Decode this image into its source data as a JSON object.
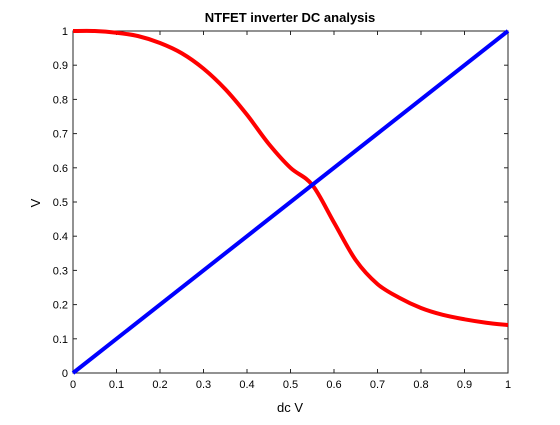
{
  "chart_data": {
    "type": "line",
    "title": "NTFET inverter DC analysis",
    "xlabel": "dc V",
    "ylabel": "V",
    "xlim": [
      0,
      1
    ],
    "ylim": [
      0,
      1
    ],
    "grid": false,
    "legend": null,
    "x_ticks": [
      "0",
      "0.1",
      "0.2",
      "0.3",
      "0.4",
      "0.5",
      "0.6",
      "0.7",
      "0.8",
      "0.9",
      "1"
    ],
    "y_ticks": [
      "0",
      "0.1",
      "0.2",
      "0.3",
      "0.4",
      "0.5",
      "0.6",
      "0.7",
      "0.8",
      "0.9",
      "1"
    ],
    "series": [
      {
        "color": "#ff0000",
        "x": [
          0,
          0.05,
          0.1,
          0.15,
          0.2,
          0.25,
          0.3,
          0.35,
          0.4,
          0.45,
          0.5,
          0.55,
          0.6,
          0.65,
          0.7,
          0.75,
          0.8,
          0.85,
          0.9,
          0.95,
          1.0
        ],
        "y": [
          1.0,
          1.0,
          0.995,
          0.985,
          0.965,
          0.935,
          0.89,
          0.83,
          0.755,
          0.67,
          0.6,
          0.55,
          0.44,
          0.33,
          0.26,
          0.22,
          0.19,
          0.17,
          0.157,
          0.147,
          0.14
        ]
      },
      {
        "color": "#0000ff",
        "x": [
          0,
          1
        ],
        "y": [
          0,
          1
        ]
      }
    ]
  }
}
